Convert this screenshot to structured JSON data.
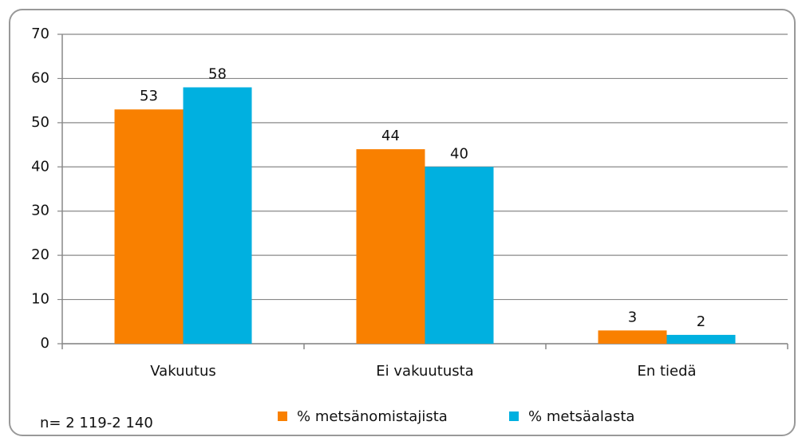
{
  "chart_data": {
    "type": "bar",
    "categories": [
      "Vakuutus",
      "Ei vakuutusta",
      "En tiedä"
    ],
    "series": [
      {
        "name": "% metsänomistajista",
        "color": "#f98000",
        "values": [
          53,
          44,
          3
        ]
      },
      {
        "name": "% metsäalasta",
        "color": "#00b0e0",
        "values": [
          58,
          40,
          2
        ]
      }
    ],
    "ylim": [
      0,
      70
    ],
    "yticks": [
      0,
      10,
      20,
      30,
      40,
      50,
      60,
      70
    ],
    "grid": true,
    "legend": "bottom",
    "annotation": "n= 2 119-2 140"
  }
}
